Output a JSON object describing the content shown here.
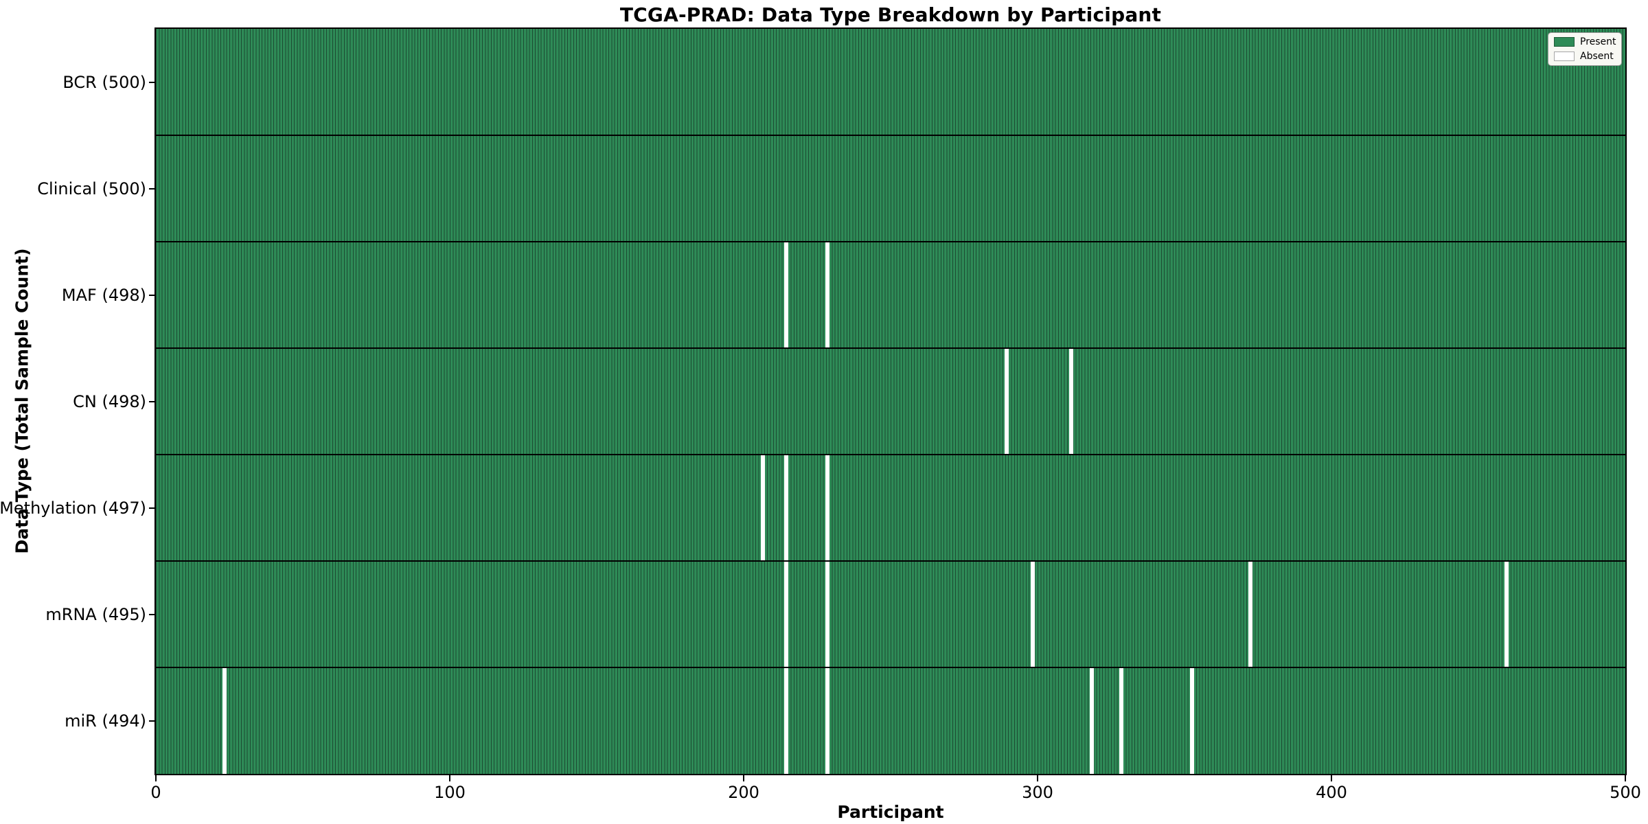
{
  "chart_data": {
    "type": "heatmap",
    "title": "TCGA-PRAD: Data Type Breakdown by Participant",
    "xlabel": "Participant",
    "ylabel": "Data Type (Total Sample Count)",
    "x_range": [
      0,
      500
    ],
    "x_ticks": [
      0,
      100,
      200,
      300,
      400,
      500
    ],
    "n_participants": 500,
    "grid": false,
    "rows": [
      {
        "label": "BCR (500)",
        "data_type": "BCR",
        "total": 500,
        "absent_participants": []
      },
      {
        "label": "Clinical (500)",
        "data_type": "Clinical",
        "total": 500,
        "absent_participants": []
      },
      {
        "label": "MAF (498)",
        "data_type": "MAF",
        "total": 498,
        "absent_participants": [
          214,
          228
        ]
      },
      {
        "label": "CN (498)",
        "data_type": "CN",
        "total": 498,
        "absent_participants": [
          289,
          311
        ]
      },
      {
        "label": "Methylation (497)",
        "data_type": "Methylation",
        "total": 497,
        "absent_participants": [
          206,
          214,
          228
        ]
      },
      {
        "label": "mRNA (495)",
        "data_type": "mRNA",
        "total": 495,
        "absent_participants": [
          214,
          228,
          298,
          372,
          459
        ]
      },
      {
        "label": "miR (494)",
        "data_type": "miR",
        "total": 494,
        "absent_participants": [
          23,
          214,
          228,
          318,
          328,
          352
        ]
      }
    ],
    "legend": {
      "position": "upper right",
      "items": [
        {
          "label": "Present",
          "color": "#2e8b57"
        },
        {
          "label": "Absent",
          "color": "#ffffff"
        }
      ]
    },
    "colors": {
      "present": "#2e8b57",
      "absent": "#ffffff",
      "cell_edge": "#1c4a32",
      "row_divider": "#000000",
      "spine": "#000000",
      "legend_bg": "#f8f8f3"
    }
  }
}
